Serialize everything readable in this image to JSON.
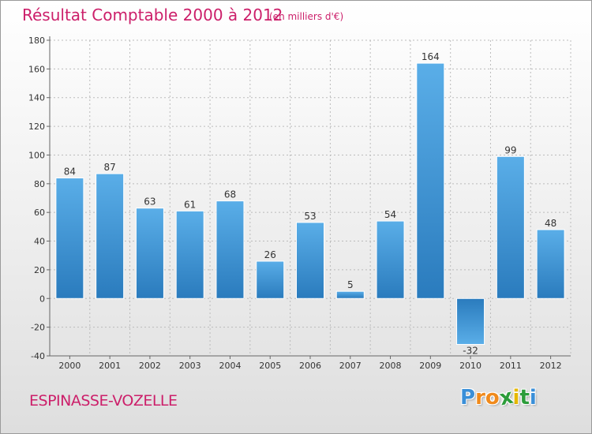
{
  "title": "Résultat Comptable 2000 à 2012",
  "subtitle": "(en milliers d'€)",
  "place": "ESPINASSE-VOZELLE",
  "logo": {
    "text": "Proxiti",
    "letters": [
      "P",
      "r",
      "o",
      "x",
      "i",
      "t",
      "i"
    ],
    "colors": [
      "#3a8fd8",
      "#f08a1c",
      "#f08a1c",
      "#2c9c3a",
      "#e6b800",
      "#2c9c3a",
      "#3a8fd8"
    ]
  },
  "colors": {
    "accent": "#cc1f6a",
    "bar_light": "#5aaee8",
    "bar_dark": "#2a7bbd",
    "grid": "#bbbbbb"
  },
  "chart_data": {
    "type": "bar",
    "title": "Résultat Comptable 2000 à 2012",
    "xlabel": "",
    "ylabel": "",
    "categories": [
      "2000",
      "2001",
      "2002",
      "2003",
      "2004",
      "2005",
      "2006",
      "2007",
      "2008",
      "2009",
      "2010",
      "2011",
      "2012"
    ],
    "values": [
      84,
      87,
      63,
      61,
      68,
      26,
      53,
      5,
      54,
      164,
      -32,
      99,
      48
    ],
    "ylim": [
      -40,
      180
    ],
    "yticks": [
      -40,
      -20,
      0,
      20,
      40,
      60,
      80,
      100,
      120,
      140,
      160,
      180
    ],
    "grid": true
  }
}
